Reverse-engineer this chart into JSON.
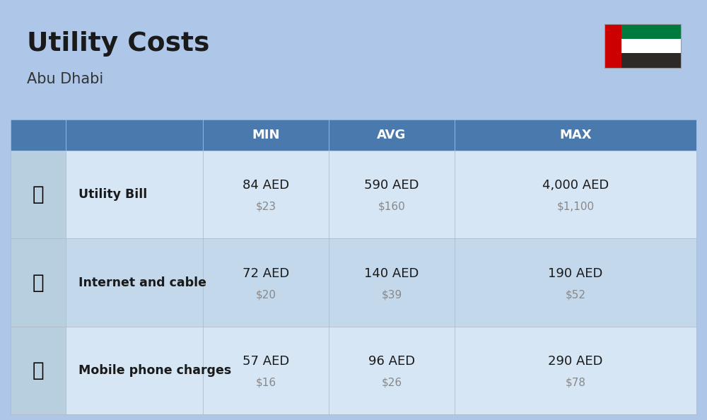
{
  "title": "Utility Costs",
  "subtitle": "Abu Dhabi",
  "bg_color": "#aec6e8",
  "header_bg_color": "#4a7aad",
  "header_text_color": "#ffffff",
  "row_bg_color_1": "#d6e6f5",
  "row_bg_color_2": "#c4d8ec",
  "icon_col_bg": "#b8cfe0",
  "col_headers": [
    "MIN",
    "AVG",
    "MAX"
  ],
  "rows": [
    {
      "label": "Utility Bill",
      "min_aed": "84 AED",
      "min_usd": "$23",
      "avg_aed": "590 AED",
      "avg_usd": "$160",
      "max_aed": "4,000 AED",
      "max_usd": "$1,100"
    },
    {
      "label": "Internet and cable",
      "min_aed": "72 AED",
      "min_usd": "$20",
      "avg_aed": "140 AED",
      "avg_usd": "$39",
      "max_aed": "190 AED",
      "max_usd": "$52"
    },
    {
      "label": "Mobile phone charges",
      "min_aed": "57 AED",
      "min_usd": "$16",
      "avg_aed": "96 AED",
      "avg_usd": "$26",
      "max_aed": "290 AED",
      "max_usd": "$78"
    }
  ],
  "flag": {
    "red": "#cc0001",
    "green": "#007a3d",
    "white": "#ffffff",
    "black": "#2d2926"
  },
  "line_color": "#b0bcc8",
  "label_color": "#1a1a1a",
  "usd_color": "#888888"
}
